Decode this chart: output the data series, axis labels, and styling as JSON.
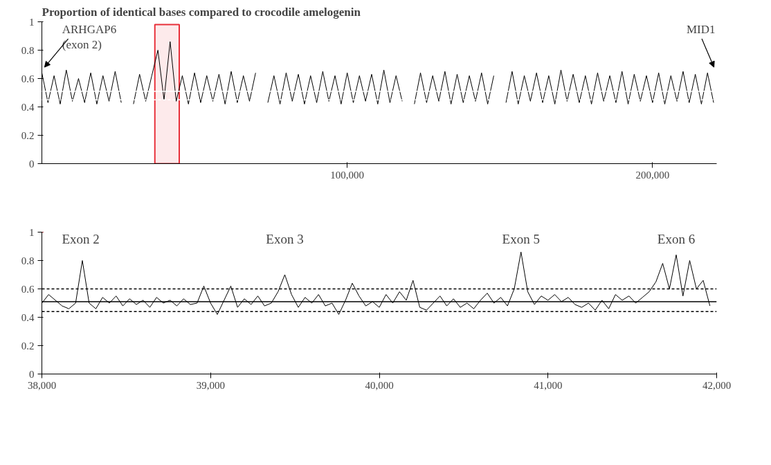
{
  "chart_data": [
    {
      "type": "line",
      "title": "Proportion of identical bases compared to crocodile amelogenin",
      "color": "#000000",
      "x": [
        0,
        2000,
        4000,
        6000,
        8000,
        10000,
        12000,
        14000,
        16000,
        18000,
        20000,
        22000,
        24000,
        26000,
        28000,
        30000,
        32000,
        34000,
        36000,
        38000,
        40000,
        42000,
        44000,
        46000,
        48000,
        50000,
        52000,
        54000,
        56000,
        58000,
        60000,
        62000,
        64000,
        66000,
        68000,
        70000,
        72000,
        74000,
        76000,
        78000,
        80000,
        82000,
        84000,
        86000,
        88000,
        90000,
        92000,
        94000,
        96000,
        98000,
        100000,
        102000,
        104000,
        106000,
        108000,
        110000,
        112000,
        114000,
        116000,
        118000,
        120000,
        122000,
        124000,
        126000,
        128000,
        130000,
        132000,
        134000,
        136000,
        138000,
        140000,
        142000,
        144000,
        146000,
        148000,
        150000,
        152000,
        154000,
        156000,
        158000,
        160000,
        162000,
        164000,
        166000,
        168000,
        170000,
        172000,
        174000,
        176000,
        178000,
        180000,
        182000,
        184000,
        186000,
        188000,
        190000,
        192000,
        194000,
        196000,
        198000,
        200000,
        202000,
        204000,
        206000,
        208000,
        210000,
        212000,
        214000,
        216000,
        218000,
        220000
      ],
      "values": [
        0.64,
        0.43,
        0.62,
        0.42,
        0.66,
        0.44,
        0.6,
        0.43,
        0.64,
        0.42,
        0.62,
        0.44,
        0.65,
        0.43,
        null,
        0.42,
        0.63,
        0.44,
        0.62,
        0.8,
        0.45,
        0.86,
        0.44,
        0.62,
        0.42,
        0.64,
        0.43,
        0.62,
        0.44,
        0.63,
        0.42,
        0.65,
        0.43,
        0.62,
        0.44,
        0.64,
        null,
        0.43,
        0.62,
        0.42,
        0.64,
        0.44,
        0.63,
        0.42,
        0.62,
        0.43,
        0.65,
        0.44,
        0.62,
        0.42,
        0.64,
        0.43,
        0.62,
        0.44,
        0.63,
        0.42,
        0.66,
        0.43,
        0.62,
        0.44,
        null,
        0.42,
        0.64,
        0.43,
        0.62,
        0.44,
        0.65,
        0.42,
        0.63,
        0.43,
        0.62,
        0.44,
        0.64,
        0.42,
        0.62,
        null,
        0.43,
        0.65,
        0.42,
        0.62,
        0.44,
        0.64,
        0.43,
        0.62,
        0.42,
        0.66,
        0.44,
        0.63,
        0.43,
        0.62,
        0.42,
        0.64,
        0.44,
        0.62,
        0.43,
        0.65,
        0.42,
        0.63,
        0.44,
        0.62,
        0.43,
        0.64,
        0.42,
        0.62,
        0.44,
        0.65,
        0.43,
        0.63,
        0.42,
        0.64,
        0.43
      ],
      "xlim": [
        0,
        221000
      ],
      "ylim": [
        0,
        1
      ],
      "xticks": [
        {
          "value": 100000,
          "label": "100,000"
        },
        {
          "value": 200000,
          "label": "200,000"
        }
      ],
      "yticks": [
        0,
        0.2,
        0.4,
        0.6,
        0.8,
        1
      ],
      "grid": false,
      "ref_lines": [
        {
          "axis": "y",
          "value": 0.51,
          "color": "#ffffff",
          "line_style": "solid"
        },
        {
          "axis": "y",
          "value": 0.45,
          "color": "#ffffff",
          "line_style": "dashed"
        }
      ],
      "bands": [
        {
          "axis": "x",
          "from": 37000,
          "to": 45000,
          "color": "#e8303a"
        }
      ],
      "annotations": [
        "ARHGAP6\n(exon 2)",
        "MID1"
      ]
    },
    {
      "type": "line",
      "color": "#000000",
      "x": [
        38000,
        38040,
        38080,
        38120,
        38160,
        38200,
        38240,
        38280,
        38320,
        38360,
        38400,
        38440,
        38480,
        38520,
        38560,
        38600,
        38640,
        38680,
        38720,
        38760,
        38800,
        38840,
        38880,
        38920,
        38960,
        39000,
        39040,
        39080,
        39120,
        39160,
        39200,
        39240,
        39280,
        39320,
        39360,
        39400,
        39440,
        39480,
        39520,
        39560,
        39600,
        39640,
        39680,
        39720,
        39760,
        39800,
        39840,
        39880,
        39920,
        39960,
        40000,
        40040,
        40080,
        40120,
        40160,
        40200,
        40240,
        40280,
        40320,
        40360,
        40400,
        40440,
        40480,
        40520,
        40560,
        40600,
        40640,
        40680,
        40720,
        40760,
        40800,
        40840,
        40880,
        40920,
        40960,
        41000,
        41040,
        41080,
        41120,
        41160,
        41200,
        41240,
        41280,
        41320,
        41360,
        41400,
        41440,
        41480,
        41520,
        41560,
        41600,
        41640,
        41680,
        41720,
        41760,
        41800,
        41840,
        41880,
        41920,
        41960
      ],
      "values": [
        0.5,
        0.56,
        0.52,
        0.48,
        0.46,
        0.5,
        0.8,
        0.5,
        0.46,
        0.54,
        0.5,
        0.55,
        0.48,
        0.53,
        0.49,
        0.52,
        0.47,
        0.54,
        0.5,
        0.52,
        0.48,
        0.53,
        0.49,
        0.5,
        0.62,
        0.5,
        0.42,
        0.52,
        0.62,
        0.47,
        0.53,
        0.49,
        0.55,
        0.48,
        0.5,
        0.58,
        0.7,
        0.56,
        0.47,
        0.54,
        0.5,
        0.56,
        0.48,
        0.5,
        0.42,
        0.52,
        0.64,
        0.55,
        0.48,
        0.51,
        0.47,
        0.56,
        0.5,
        0.58,
        0.52,
        0.66,
        0.47,
        0.45,
        0.5,
        0.55,
        0.48,
        0.53,
        0.47,
        0.5,
        0.46,
        0.52,
        0.57,
        0.5,
        0.54,
        0.48,
        0.6,
        0.86,
        0.58,
        0.49,
        0.55,
        0.52,
        0.56,
        0.51,
        0.54,
        0.49,
        0.47,
        0.5,
        0.45,
        0.52,
        0.46,
        0.56,
        0.52,
        0.55,
        0.5,
        0.54,
        0.58,
        0.65,
        0.78,
        0.6,
        0.84,
        0.55,
        0.8,
        0.6,
        0.66,
        0.48
      ],
      "xlim": [
        38000,
        42000
      ],
      "ylim": [
        0,
        1
      ],
      "xticks": [
        {
          "value": 38000,
          "label": "38,000"
        },
        {
          "value": 39000,
          "label": "39,000"
        },
        {
          "value": 40000,
          "label": "40,000"
        },
        {
          "value": 41000,
          "label": "41,000"
        },
        {
          "value": 42000,
          "label": "42,000"
        }
      ],
      "yticks": [
        0,
        0.2,
        0.4,
        0.6,
        0.8,
        1
      ],
      "grid": false,
      "ref_lines": [
        {
          "axis": "y",
          "value": 0.6,
          "color": "#000000",
          "line_style": "dashed"
        },
        {
          "axis": "y",
          "value": 0.51,
          "color": "#000000",
          "line_style": "solid"
        },
        {
          "axis": "y",
          "value": 0.44,
          "color": "#000000",
          "line_style": "dashed"
        }
      ],
      "annotations": [
        {
          "text": "Exon 2",
          "x": 38230,
          "y": 0.8
        },
        {
          "text": "Exon 3",
          "x": 39440,
          "y": 0.7
        },
        {
          "text": "Exon 5",
          "x": 40840,
          "y": 0.86
        },
        {
          "text": "Exon 6",
          "x": 41760,
          "y": 0.84
        }
      ]
    }
  ]
}
